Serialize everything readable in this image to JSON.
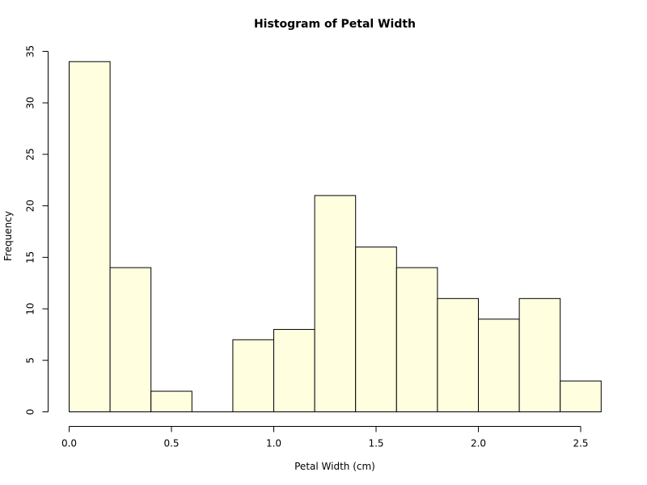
{
  "chart_data": {
    "type": "bar",
    "title": "Histogram of Petal Width",
    "xlabel": "Petal Width (cm)",
    "ylabel": "Frequency",
    "bin_edges": [
      0.0,
      0.2,
      0.4,
      0.6,
      0.8,
      1.0,
      1.2,
      1.4,
      1.6,
      1.8,
      2.0,
      2.2,
      2.4,
      2.6
    ],
    "values": [
      34,
      14,
      2,
      0,
      7,
      8,
      21,
      16,
      14,
      11,
      9,
      11,
      3
    ],
    "xlim": [
      0.0,
      2.6
    ],
    "ylim": [
      0,
      35
    ],
    "x_ticks": [
      0.0,
      0.5,
      1.0,
      1.5,
      2.0,
      2.5
    ],
    "x_tick_labels": [
      "0.0",
      "0.5",
      "1.0",
      "1.5",
      "2.0",
      "2.5"
    ],
    "y_ticks": [
      0,
      5,
      10,
      15,
      20,
      25,
      30,
      35
    ],
    "y_tick_labels": [
      "0",
      "5",
      "10",
      "15",
      "20",
      "25",
      "30",
      "35"
    ],
    "bar_color": "#ffffe0",
    "edge_color": "#000000",
    "grid": false
  }
}
